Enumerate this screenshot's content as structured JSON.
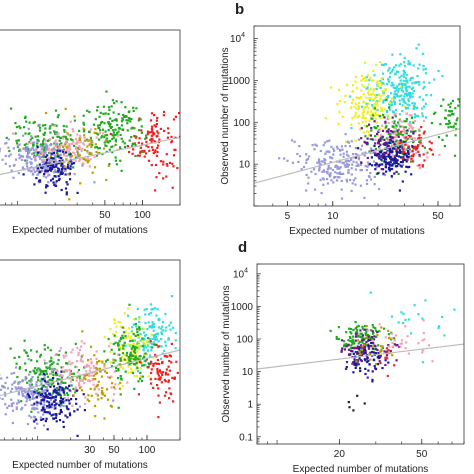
{
  "chart_data": [
    {
      "type": "scatter",
      "panel": "",
      "xlabel": "Expected number of mutations",
      "ylabel": "",
      "xscale": "log",
      "yscale": "log",
      "xlim": [
        5,
        200
      ],
      "ylim": [
        2,
        20000
      ],
      "x_ticks": [
        {
          "value": 50,
          "label": "50"
        },
        {
          "value": 100,
          "label": "100"
        }
      ],
      "y_ticks": [],
      "trend_line": {
        "x": [
          5,
          200
        ],
        "y": [
          8,
          70
        ]
      },
      "grid": false,
      "legend": "none",
      "clusters": [
        {
          "color": "#ee2222",
          "x_center": 125,
          "y_center": 60,
          "x_spread": 0.1,
          "y_spread": 0.4,
          "count": 110
        },
        {
          "color": "#22aa22",
          "x_center": 60,
          "y_center": 100,
          "x_spread": 0.12,
          "y_spread": 0.3,
          "count": 150
        },
        {
          "color": "#22aa22",
          "x_center": 18,
          "y_center": 55,
          "x_spread": 0.16,
          "y_spread": 0.28,
          "count": 160
        },
        {
          "color": "#f4a3b4",
          "x_center": 25,
          "y_center": 40,
          "x_spread": 0.15,
          "y_spread": 0.25,
          "count": 130
        },
        {
          "color": "#9999dd",
          "x_center": 15,
          "y_center": 22,
          "x_spread": 0.15,
          "y_spread": 0.25,
          "count": 180
        },
        {
          "color": "#1a1a99",
          "x_center": 20,
          "y_center": 12,
          "x_spread": 0.08,
          "y_spread": 0.25,
          "count": 110
        },
        {
          "color": "#b8a000",
          "x_center": 35,
          "y_center": 30,
          "x_spread": 0.1,
          "y_spread": 0.35,
          "count": 50
        }
      ]
    },
    {
      "type": "scatter",
      "panel": "b",
      "xlabel": "Expected number of mutations",
      "ylabel": "Observed number of mutations",
      "xscale": "log",
      "yscale": "log",
      "xlim": [
        3,
        70
      ],
      "ylim": [
        1,
        20000
      ],
      "x_ticks": [
        {
          "value": 5,
          "label": "5"
        },
        {
          "value": 10,
          "label": "10"
        },
        {
          "value": 50,
          "label": "50"
        }
      ],
      "y_ticks": [
        {
          "value": 10,
          "label": "10"
        },
        {
          "value": 100,
          "label": "100"
        },
        {
          "value": 1000,
          "label": "1000"
        },
        {
          "value": 10000,
          "label": "10",
          "sup": "4"
        }
      ],
      "trend_line": {
        "x": [
          3,
          70
        ],
        "y": [
          3.5,
          70
        ]
      },
      "grid": false,
      "legend": "none",
      "clusters": [
        {
          "color": "#33dddd",
          "x_center": 28,
          "y_center": 600,
          "x_spread": 0.1,
          "y_spread": 0.4,
          "count": 240
        },
        {
          "color": "#eeee22",
          "x_center": 17,
          "y_center": 300,
          "x_spread": 0.09,
          "y_spread": 0.38,
          "count": 160
        },
        {
          "color": "#22aa22",
          "x_center": 25,
          "y_center": 45,
          "x_spread": 0.09,
          "y_spread": 0.28,
          "count": 130
        },
        {
          "color": "#22aa22",
          "x_center": 60,
          "y_center": 120,
          "x_spread": 0.05,
          "y_spread": 0.3,
          "count": 50
        },
        {
          "color": "#9999dd",
          "x_center": 11,
          "y_center": 10,
          "x_spread": 0.16,
          "y_spread": 0.3,
          "count": 220
        },
        {
          "color": "#1a1a99",
          "x_center": 25,
          "y_center": 15,
          "x_spread": 0.07,
          "y_spread": 0.22,
          "count": 200
        },
        {
          "color": "#f4a3b4",
          "x_center": 30,
          "y_center": 40,
          "x_spread": 0.1,
          "y_spread": 0.3,
          "count": 80
        },
        {
          "color": "#ee2222",
          "x_center": 35,
          "y_center": 25,
          "x_spread": 0.08,
          "y_spread": 0.25,
          "count": 50
        },
        {
          "color": "#6a1a8a",
          "x_center": 22,
          "y_center": 35,
          "x_spread": 0.07,
          "y_spread": 0.3,
          "count": 50
        }
      ]
    },
    {
      "type": "scatter",
      "panel": "",
      "xlabel": "Expected number of mutations",
      "ylabel": "",
      "xscale": "log",
      "yscale": "log",
      "xlim": [
        3,
        200
      ],
      "ylim": [
        2,
        20000
      ],
      "x_ticks": [
        {
          "value": 30,
          "label": "30"
        },
        {
          "value": 50,
          "label": "50"
        },
        {
          "value": 100,
          "label": "100"
        }
      ],
      "y_ticks": [],
      "trend_line": {
        "x": [
          3,
          200
        ],
        "y": [
          15,
          200
        ]
      },
      "grid": false,
      "legend": "none",
      "clusters": [
        {
          "color": "#33dddd",
          "x_center": 110,
          "y_center": 400,
          "x_spread": 0.1,
          "y_spread": 0.35,
          "count": 140
        },
        {
          "color": "#eeee22",
          "x_center": 70,
          "y_center": 200,
          "x_spread": 0.1,
          "y_spread": 0.35,
          "count": 120
        },
        {
          "color": "#22aa22",
          "x_center": 70,
          "y_center": 150,
          "x_spread": 0.1,
          "y_spread": 0.35,
          "count": 120
        },
        {
          "color": "#22aa22",
          "x_center": 12,
          "y_center": 55,
          "x_spread": 0.15,
          "y_spread": 0.3,
          "count": 160
        },
        {
          "color": "#ee2222",
          "x_center": 130,
          "y_center": 70,
          "x_spread": 0.08,
          "y_spread": 0.3,
          "count": 80
        },
        {
          "color": "#f4a3b4",
          "x_center": 25,
          "y_center": 60,
          "x_spread": 0.15,
          "y_spread": 0.3,
          "count": 120
        },
        {
          "color": "#9999dd",
          "x_center": 9,
          "y_center": 20,
          "x_spread": 0.18,
          "y_spread": 0.3,
          "count": 200
        },
        {
          "color": "#1a1a99",
          "x_center": 14,
          "y_center": 15,
          "x_spread": 0.1,
          "y_spread": 0.25,
          "count": 140
        },
        {
          "color": "#b8a000",
          "x_center": 35,
          "y_center": 40,
          "x_spread": 0.1,
          "y_spread": 0.35,
          "count": 60
        }
      ]
    },
    {
      "type": "scatter",
      "panel": "d",
      "xlabel": "Expected number of mutations",
      "ylabel": "Observed number of mutations",
      "xscale": "log",
      "yscale": "log",
      "xlim": [
        8,
        80
      ],
      "ylim": [
        0.06,
        20000
      ],
      "x_ticks": [
        {
          "value": 20,
          "label": "20"
        },
        {
          "value": 50,
          "label": "50"
        }
      ],
      "y_ticks": [
        {
          "value": 0.1,
          "label": "0.1"
        },
        {
          "value": 1,
          "label": "1"
        },
        {
          "value": 10,
          "label": "10"
        },
        {
          "value": 100,
          "label": "100"
        },
        {
          "value": 1000,
          "label": "1000"
        },
        {
          "value": 10000,
          "label": "10",
          "sup": "4"
        }
      ],
      "trend_line": {
        "x": [
          8,
          80
        ],
        "y": [
          12,
          70
        ]
      },
      "grid": false,
      "legend": "none",
      "clusters": [
        {
          "color": "#22aa22",
          "x_center": 25,
          "y_center": 100,
          "x_spread": 0.06,
          "y_spread": 0.25,
          "count": 110
        },
        {
          "color": "#6a1a8a",
          "x_center": 27,
          "y_center": 45,
          "x_spread": 0.06,
          "y_spread": 0.25,
          "count": 100
        },
        {
          "color": "#1a1a99",
          "x_center": 27,
          "y_center": 25,
          "x_spread": 0.05,
          "y_spread": 0.3,
          "count": 60
        },
        {
          "color": "#b8a000",
          "x_center": 30,
          "y_center": 60,
          "x_spread": 0.05,
          "y_spread": 0.3,
          "count": 25
        },
        {
          "color": "#f4a3b4",
          "x_center": 40,
          "y_center": 80,
          "x_spread": 0.08,
          "y_spread": 0.3,
          "count": 30
        },
        {
          "color": "#33dddd",
          "x_center": 50,
          "y_center": 300,
          "x_spread": 0.1,
          "y_spread": 0.6,
          "count": 20
        },
        {
          "color": "#ee2222",
          "x_center": 35,
          "y_center": 20,
          "x_spread": 0.05,
          "y_spread": 0.3,
          "count": 8
        },
        {
          "color": "#222222",
          "x_center": 24,
          "y_center": 1,
          "x_spread": 0.04,
          "y_spread": 0.5,
          "count": 6
        }
      ]
    }
  ]
}
